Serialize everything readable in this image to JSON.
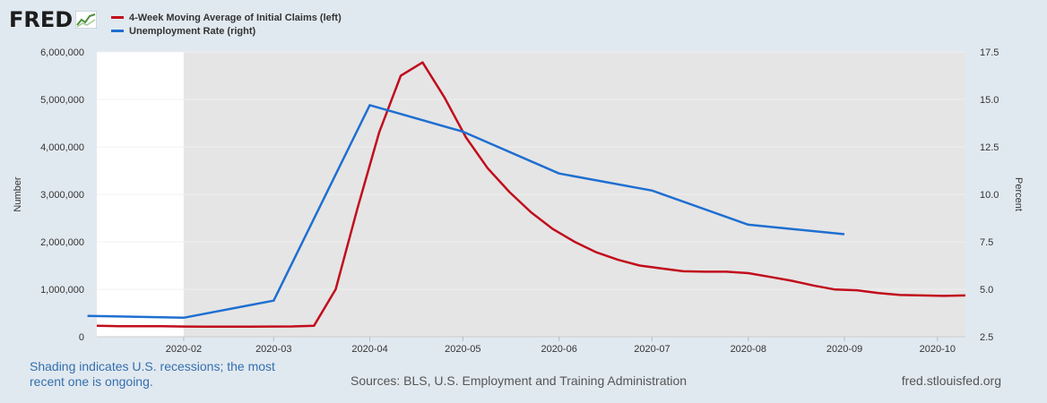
{
  "logo": {
    "text": "FRED"
  },
  "legend": [
    {
      "label": "4-Week Moving Average of Initial Claims (left)",
      "color": "#c10d1c"
    },
    {
      "label": "Unemployment Rate (right)",
      "color": "#1f6fd1"
    }
  ],
  "footer": {
    "note": "Shading indicates U.S. recessions; the most recent one is ongoing.",
    "sources": "Sources: BLS, U.S. Employment and Training Administration",
    "site": "fred.stlouisfed.org"
  },
  "chart_data": {
    "type": "line",
    "ylabel_left": "Number",
    "ylabel_right": "Percent",
    "x_range": [
      "2020-01-04",
      "2020-10-10"
    ],
    "x_ticks": [
      "2020-02",
      "2020-03",
      "2020-04",
      "2020-05",
      "2020-06",
      "2020-07",
      "2020-08",
      "2020-09",
      "2020-10"
    ],
    "y_left_range": [
      0,
      6000000
    ],
    "y_left_ticks": [
      "0",
      "1,000,000",
      "2,000,000",
      "3,000,000",
      "4,000,000",
      "5,000,000",
      "6,000,000"
    ],
    "y_right_range": [
      2.5,
      17.5
    ],
    "y_right_ticks": [
      "2.5",
      "5.0",
      "7.5",
      "10.0",
      "12.5",
      "15.0",
      "17.5"
    ],
    "recession_shading": {
      "start": "2020-02-01",
      "end": "2020-10-10"
    },
    "series": [
      {
        "name": "4-Week Moving Average of Initial Claims (left)",
        "axis": "left",
        "color": "#c10d1c",
        "points": [
          [
            "2020-01-04",
            230000
          ],
          [
            "2020-01-11",
            222000
          ],
          [
            "2020-01-18",
            222000
          ],
          [
            "2020-01-25",
            220000
          ],
          [
            "2020-02-01",
            215000
          ],
          [
            "2020-02-08",
            212000
          ],
          [
            "2020-02-15",
            212000
          ],
          [
            "2020-02-22",
            213000
          ],
          [
            "2020-02-29",
            215000
          ],
          [
            "2020-03-07",
            217000
          ],
          [
            "2020-03-14",
            232000
          ],
          [
            "2020-03-21",
            1000000
          ],
          [
            "2020-03-28",
            2700000
          ],
          [
            "2020-04-04",
            4300000
          ],
          [
            "2020-04-11",
            5500000
          ],
          [
            "2020-04-18",
            5780000
          ],
          [
            "2020-04-25",
            5050000
          ],
          [
            "2020-05-02",
            4200000
          ],
          [
            "2020-05-09",
            3550000
          ],
          [
            "2020-05-16",
            3050000
          ],
          [
            "2020-05-23",
            2620000
          ],
          [
            "2020-05-30",
            2270000
          ],
          [
            "2020-06-06",
            2000000
          ],
          [
            "2020-06-13",
            1780000
          ],
          [
            "2020-06-20",
            1620000
          ],
          [
            "2020-06-27",
            1500000
          ],
          [
            "2020-07-04",
            1440000
          ],
          [
            "2020-07-11",
            1380000
          ],
          [
            "2020-07-18",
            1370000
          ],
          [
            "2020-07-25",
            1370000
          ],
          [
            "2020-08-01",
            1340000
          ],
          [
            "2020-08-08",
            1260000
          ],
          [
            "2020-08-15",
            1180000
          ],
          [
            "2020-08-22",
            1080000
          ],
          [
            "2020-08-29",
            995000
          ],
          [
            "2020-09-05",
            980000
          ],
          [
            "2020-09-12",
            920000
          ],
          [
            "2020-09-19",
            880000
          ],
          [
            "2020-09-26",
            870000
          ],
          [
            "2020-10-03",
            860000
          ],
          [
            "2020-10-10",
            870000
          ]
        ]
      },
      {
        "name": "Unemployment Rate (right)",
        "axis": "right",
        "color": "#1f6fd1",
        "points": [
          [
            "2020-01-01",
            3.6
          ],
          [
            "2020-02-01",
            3.5
          ],
          [
            "2020-03-01",
            4.4
          ],
          [
            "2020-04-01",
            14.7
          ],
          [
            "2020-05-01",
            13.3
          ],
          [
            "2020-06-01",
            11.1
          ],
          [
            "2020-07-01",
            10.2
          ],
          [
            "2020-08-01",
            8.4
          ],
          [
            "2020-09-01",
            7.9
          ]
        ]
      }
    ]
  }
}
